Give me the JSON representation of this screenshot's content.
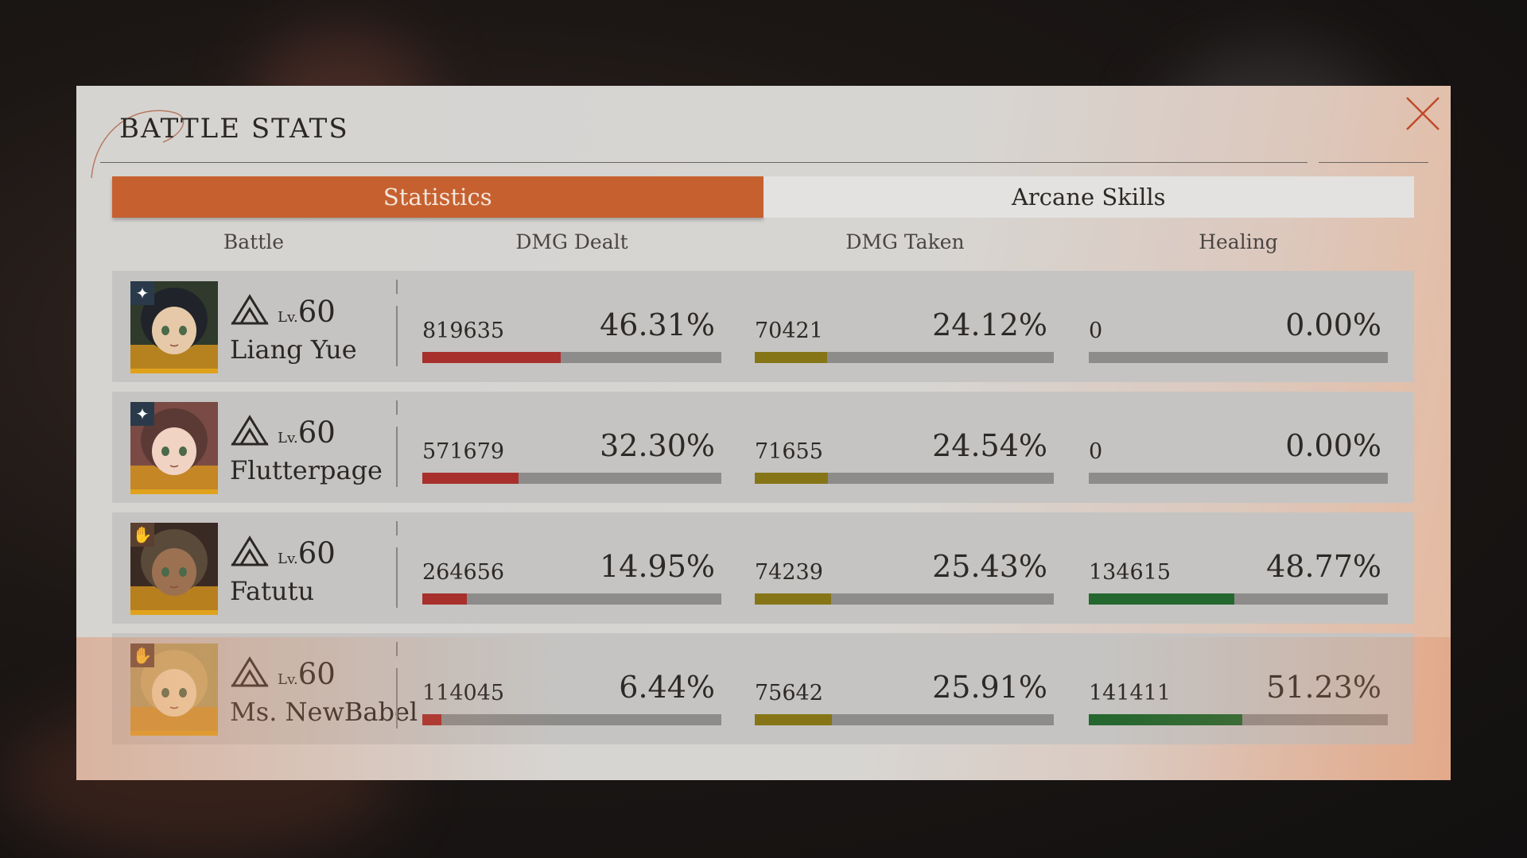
{
  "panel": {
    "title": "BATTLE STATS",
    "close_icon": "close-x-icon"
  },
  "tabs": [
    {
      "label": "Statistics",
      "active": true
    },
    {
      "label": "Arcane Skills",
      "active": false
    }
  ],
  "columns": [
    "Battle",
    "DMG Dealt",
    "DMG Taken",
    "Healing"
  ],
  "level_prefix": "Lv.",
  "colors": {
    "accent": "#c6612f",
    "dmg_dealt": "#a8302c",
    "dmg_taken": "#867516",
    "healing": "#24672f",
    "bar_track": "#8e8c8a"
  },
  "characters": [
    {
      "name": "Liang Yue",
      "level": "60",
      "class_icon": "star-class-icon",
      "portrait_colors": [
        "#2f3a2c",
        "#e6c9a8",
        "#20242a"
      ],
      "dmg_dealt": {
        "value": "819635",
        "percent": "46.31%",
        "fraction": 0.4631
      },
      "dmg_taken": {
        "value": "70421",
        "percent": "24.12%",
        "fraction": 0.2412
      },
      "healing": {
        "value": "0",
        "percent": "0.00%",
        "fraction": 0
      }
    },
    {
      "name": "Flutterpage",
      "level": "60",
      "class_icon": "star-class-icon",
      "portrait_colors": [
        "#7a4a45",
        "#f0d3c2",
        "#5b3a36"
      ],
      "dmg_dealt": {
        "value": "571679",
        "percent": "32.30%",
        "fraction": 0.323
      },
      "dmg_taken": {
        "value": "71655",
        "percent": "24.54%",
        "fraction": 0.2454
      },
      "healing": {
        "value": "0",
        "percent": "0.00%",
        "fraction": 0
      }
    },
    {
      "name": "Fatutu",
      "level": "60",
      "class_icon": "support-class-icon",
      "portrait_colors": [
        "#3a2a24",
        "#9c7152",
        "#5a4a3a"
      ],
      "dmg_dealt": {
        "value": "264656",
        "percent": "14.95%",
        "fraction": 0.1495
      },
      "dmg_taken": {
        "value": "74239",
        "percent": "25.43%",
        "fraction": 0.2543
      },
      "healing": {
        "value": "134615",
        "percent": "48.77%",
        "fraction": 0.4877
      }
    },
    {
      "name": "Ms. NewBabel",
      "level": "60",
      "class_icon": "support-class-icon",
      "portrait_colors": [
        "#b0a060",
        "#f1dcb0",
        "#c9b06a"
      ],
      "dmg_dealt": {
        "value": "114045",
        "percent": "6.44%",
        "fraction": 0.0644
      },
      "dmg_taken": {
        "value": "75642",
        "percent": "25.91%",
        "fraction": 0.2591
      },
      "healing": {
        "value": "141411",
        "percent": "51.23%",
        "fraction": 0.5123
      }
    }
  ]
}
